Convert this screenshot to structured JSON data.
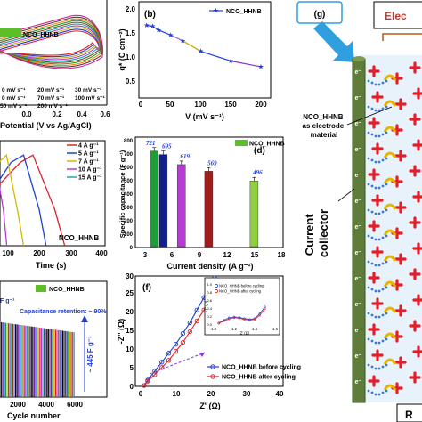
{
  "panel_a": {
    "legend_series": "NCO_HHNB",
    "xlabel": "Potential (V vs Ag/AgCl)",
    "xticks": [
      "0.0",
      "0.2",
      "0.4",
      "0.6"
    ],
    "rate_labels": [
      "0 mV s⁻¹",
      "20 mV s⁻¹",
      "30 mV s⁻¹",
      "0 mV s⁻¹",
      "70 mV s⁻¹",
      "100 mV s⁻¹",
      "50 mV s⁻¹",
      "200 mV s⁻¹"
    ]
  },
  "panel_b": {
    "tag": "(b)",
    "legend": "NCO_HHNB",
    "xlabel": "V (mV s⁻¹)",
    "ylabel": "q* (C cm⁻²)",
    "xticks": [
      "0",
      "50",
      "100",
      "150",
      "200"
    ],
    "yticks": [
      "0.5",
      "1.0",
      "1.5",
      "2.0"
    ]
  },
  "panel_c": {
    "legend": [
      "4 A g⁻¹",
      "5 A g⁻¹",
      "7 A g⁻¹",
      "10 A g⁻¹",
      "15 A g⁻¹"
    ],
    "label": "NCO_HHNB",
    "xlabel": "Time (s)",
    "xticks": [
      "100",
      "200",
      "300",
      "400"
    ]
  },
  "panel_d": {
    "tag": "(d)",
    "legend": "NCO_HHNB",
    "xlabel": "Current density (A g⁻¹)",
    "ylabel": "Specific capacitance (F g⁻¹)",
    "xticks": [
      "3",
      "6",
      "9",
      "12",
      "15",
      "18"
    ],
    "yticks": [
      "0",
      "100",
      "200",
      "300",
      "400",
      "500",
      "600",
      "700",
      "800"
    ]
  },
  "panel_e": {
    "legend": "NCO_HHNB",
    "capacity_label": "F g⁻¹",
    "retention": "Capacitance retention: ~ 90%",
    "final_value": "~ 445 F g⁻¹",
    "xlabel": "Cycle number",
    "xticks": [
      "2000",
      "4000",
      "6000"
    ]
  },
  "panel_f": {
    "tag": "(f)",
    "xlabel": "Z' (Ω)",
    "ylabel": "-Z'' (Ω)",
    "xticks": [
      "0",
      "10",
      "20",
      "30",
      "40"
    ],
    "yticks": [
      "0",
      "5",
      "10",
      "15",
      "20",
      "25",
      "30"
    ],
    "legend": [
      "NCO_HHNB before cycling",
      "NCO_HHNB after cycling"
    ],
    "inset": {
      "legend": [
        "NCO_HHNB before cycling",
        "NCO_HHNB after cycling"
      ],
      "xlabel": "Z' (Ω)",
      "ylabel": "-Z'' (Ω)",
      "xticks": [
        "1.0",
        "1.2",
        "1.4",
        "1.6"
      ],
      "yticks": [
        "0.0",
        "0.2",
        "0.4",
        "0.6",
        "0.8",
        "1.0"
      ]
    }
  },
  "panel_g": {
    "tag": "(g)",
    "electrolyte_fragment": "Elec",
    "electrode_label": "NCO_HHNB as electrode material",
    "collector_label": "Current collector",
    "bottom_fragment": "R",
    "electron_symbol": "e⁻"
  },
  "colors": {
    "before_cycling": "#1f3fd6",
    "after_cycling": "#e01f2a",
    "legend_green": "#5cbf2a",
    "collector": "#5f7d3a",
    "arrow_blue": "#2f9fe0"
  },
  "chart_data": [
    {
      "panel": "b",
      "type": "line",
      "series": [
        {
          "name": "NCO_HHNB",
          "x": [
            10,
            20,
            30,
            50,
            70,
            100,
            150,
            200
          ],
          "values": [
            1.62,
            1.6,
            1.52,
            1.42,
            1.3,
            1.08,
            0.88,
            0.76
          ]
        }
      ],
      "xlim": [
        0,
        220
      ],
      "ylim": [
        0.4,
        2.1
      ]
    },
    {
      "panel": "d",
      "type": "bar",
      "categories": [
        "4",
        "5",
        "7",
        "10",
        "15"
      ],
      "values": [
        721,
        695,
        619,
        569,
        496
      ],
      "x": [
        4,
        5,
        7,
        10,
        15
      ],
      "xlim": [
        3,
        18
      ],
      "ylim": [
        0,
        800
      ],
      "bar_colors": [
        "#1f9d3a",
        "#101f8f",
        "#b93ad8",
        "#a01d1d",
        "#8fd13a"
      ]
    },
    {
      "panel": "c",
      "type": "line",
      "series": [
        {
          "name": "4 A g⁻¹",
          "x": [
            0,
            40,
            140,
            180,
            250,
            282
          ],
          "values": [
            0,
            0.28,
            0.46,
            0.5,
            0.2,
            0
          ]
        },
        {
          "name": "5 A g⁻¹",
          "x": [
            0,
            40,
            110,
            150,
            200,
            222
          ],
          "values": [
            0,
            0.28,
            0.46,
            0.5,
            0.2,
            0
          ]
        },
        {
          "name": "7 A g⁻¹",
          "x": [
            0,
            30,
            70,
            95,
            130,
            150
          ],
          "values": [
            0,
            0.28,
            0.46,
            0.5,
            0.2,
            0
          ]
        },
        {
          "name": "10 A g⁻¹",
          "x": [
            0,
            20,
            40,
            55,
            85,
            96
          ],
          "values": [
            0,
            0.28,
            0.46,
            0.5,
            0.2,
            0
          ]
        },
        {
          "name": "15 A g⁻¹",
          "x": [
            0,
            10,
            25,
            33,
            48,
            55
          ],
          "values": [
            0,
            0.28,
            0.46,
            0.5,
            0.2,
            0
          ]
        }
      ],
      "xlim": [
        0,
        400
      ]
    },
    {
      "panel": "e",
      "type": "bar",
      "xlim": [
        0,
        6000
      ],
      "bar_count": 52
    },
    {
      "panel": "f",
      "type": "scatter",
      "series": [
        {
          "name": "NCO_HHNB before cycling",
          "x": [
            1.0,
            2,
            4,
            6,
            8,
            10,
            12,
            14,
            16,
            18,
            20,
            21
          ],
          "values": [
            0,
            1.5,
            4,
            6.5,
            9,
            11.5,
            14.5,
            17.5,
            21,
            24.5,
            28,
            30
          ]
        },
        {
          "name": "NCO_HHNB after cycling",
          "x": [
            1.0,
            2,
            4,
            6,
            8,
            10,
            12,
            14,
            16,
            18,
            20,
            21.5
          ],
          "values": [
            0,
            1.2,
            3,
            5,
            7,
            9.5,
            12,
            15,
            18,
            21,
            24.5,
            26
          ]
        }
      ],
      "xlim": [
        0,
        40
      ],
      "ylim": [
        0,
        30
      ]
    },
    {
      "panel": "f-inset",
      "type": "line",
      "series": [
        {
          "name": "NCO_HHNB before cycling",
          "x": [
            1.05,
            1.1,
            1.15,
            1.2,
            1.25,
            1.3,
            1.35,
            1.4,
            1.45,
            1.5
          ],
          "values": [
            0.05,
            0.12,
            0.18,
            0.2,
            0.19,
            0.16,
            0.14,
            0.16,
            0.28,
            0.45
          ]
        },
        {
          "name": "NCO_HHNB after cycling",
          "x": [
            1.05,
            1.1,
            1.15,
            1.2,
            1.25,
            1.3,
            1.35,
            1.4,
            1.45,
            1.5
          ],
          "values": [
            0.04,
            0.1,
            0.15,
            0.18,
            0.17,
            0.14,
            0.12,
            0.14,
            0.24,
            0.4
          ]
        }
      ],
      "xlim": [
        1.0,
        1.6
      ],
      "ylim": [
        0.0,
        1.0
      ]
    }
  ]
}
